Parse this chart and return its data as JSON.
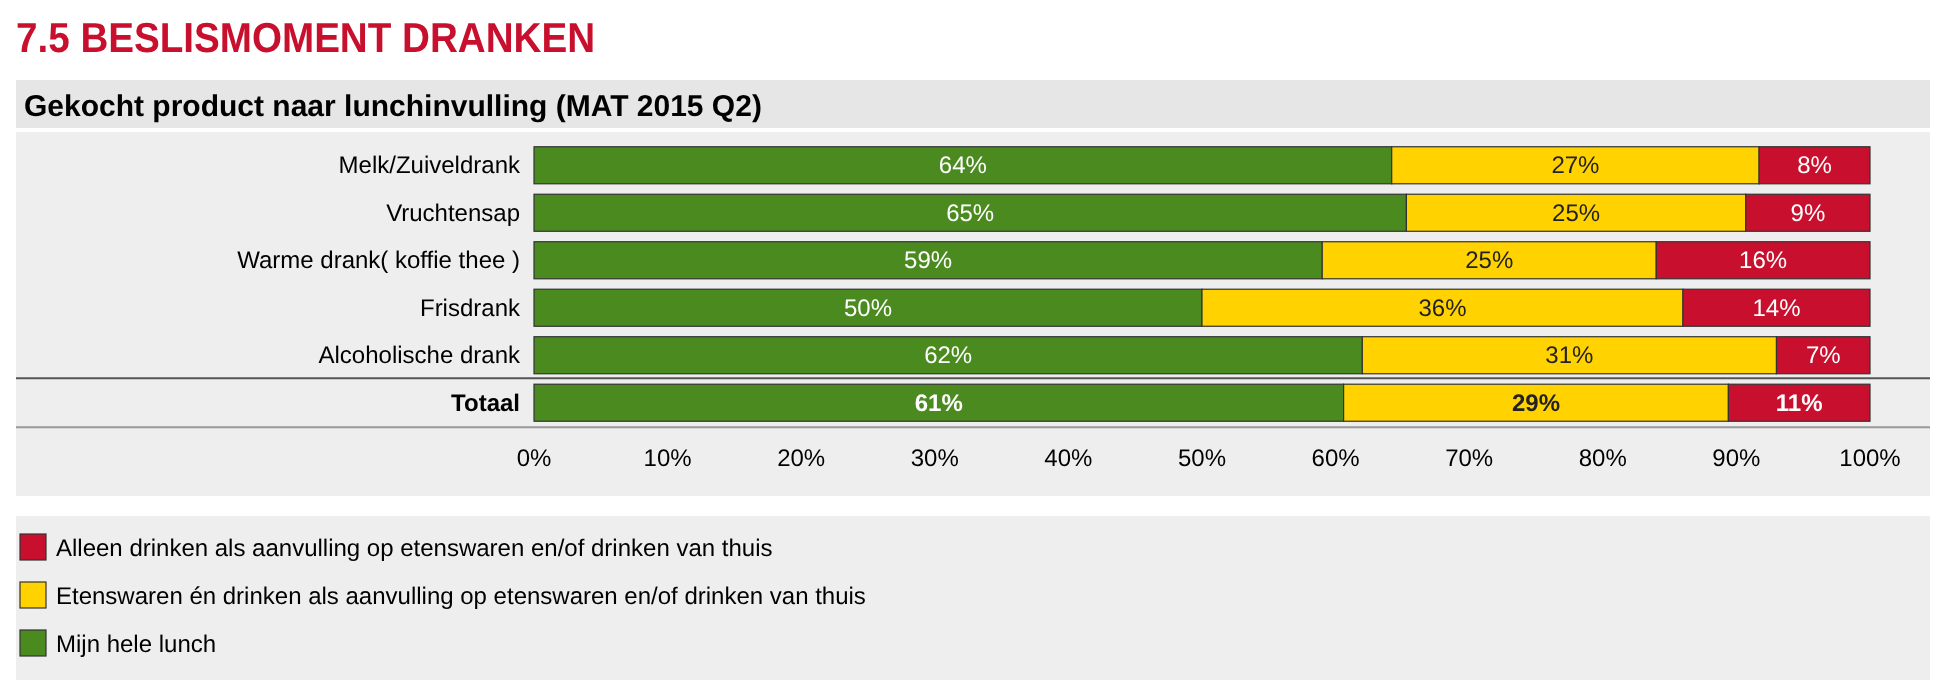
{
  "chart_data": {
    "type": "bar",
    "orientation": "horizontal",
    "stacked": true,
    "title": "7.5 BESLISMOMENT DRANKEN",
    "subtitle": "Gekocht product naar lunchinvulling (MAT 2015 Q2)",
    "categories": [
      "Melk/Zuiveldrank",
      "Vruchtensap",
      "Warme drank( koffie thee )",
      "Frisdrank",
      "Alcoholische drank",
      "Totaal"
    ],
    "xlim": [
      0,
      100
    ],
    "xticks": [
      {
        "value": 0,
        "label": "0%"
      },
      {
        "value": 10,
        "label": "10%"
      },
      {
        "value": 20,
        "label": "20%"
      },
      {
        "value": 30,
        "label": "30%"
      },
      {
        "value": 40,
        "label": "40%"
      },
      {
        "value": 50,
        "label": "50%"
      },
      {
        "value": 60,
        "label": "60%"
      },
      {
        "value": 70,
        "label": "70%"
      },
      {
        "value": 80,
        "label": "80%"
      },
      {
        "value": 90,
        "label": "90%"
      },
      {
        "value": 100,
        "label": "100%"
      }
    ],
    "series": [
      {
        "name": "Mijn hele lunch",
        "color": "#4b8a1f",
        "values": [
          64.2,
          65.3,
          59,
          50,
          62,
          60.6
        ],
        "value_labels": [
          "64%",
          "65%",
          "59%",
          "50%",
          "62%",
          "61%"
        ]
      },
      {
        "name": "Etenswaren én drinken als aanvulling op etenswaren en/of drinken van thuis",
        "color": "#ffd200",
        "values": [
          27.5,
          25.4,
          25,
          36,
          31,
          28.8
        ],
        "value_labels": [
          "27%",
          "25%",
          "25%",
          "36%",
          "31%",
          "29%"
        ]
      },
      {
        "name": "Alleen drinken als aanvulling op etenswaren en/of drinken van thuis",
        "color": "#c8102e",
        "values": [
          8.3,
          9.3,
          16,
          14,
          7,
          10.6
        ],
        "value_labels": [
          "8%",
          "9%",
          "16%",
          "14%",
          "7%",
          "11%"
        ]
      }
    ],
    "legend": "bottom",
    "grid": false
  }
}
